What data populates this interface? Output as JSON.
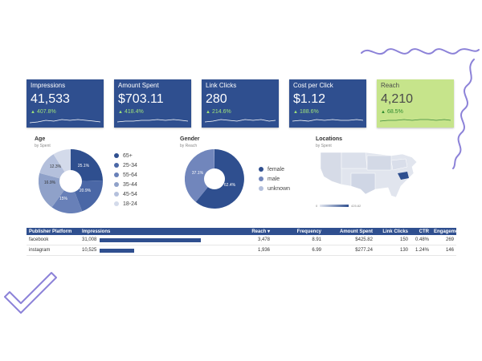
{
  "colors": {
    "kpi_dark": "#2f4f8f",
    "kpi_light": "#c6e48b",
    "delta_positive": "#9fe27a",
    "decoration": "#8c82d8"
  },
  "kpis": [
    {
      "title": "Impressions",
      "value": "41,533",
      "delta": "407.8%"
    },
    {
      "title": "Amount Spent",
      "value": "$703.11",
      "delta": "418.4%"
    },
    {
      "title": "Link Clicks",
      "value": "280",
      "delta": "214.6%"
    },
    {
      "title": "Cost per Click",
      "value": "$1.12",
      "delta": "188.6%"
    },
    {
      "title": "Reach",
      "value": "4,210",
      "delta": "68.5%"
    }
  ],
  "age": {
    "title": "Age",
    "subtitle": "by Spent",
    "legend": [
      "65+",
      "25-34",
      "55-64",
      "35-44",
      "45-54",
      "18-24"
    ],
    "slice_labels": [
      "25.1%",
      "20.9%",
      "15%",
      "16.9%",
      "12.3%"
    ]
  },
  "gender": {
    "title": "Gender",
    "subtitle": "by Reach",
    "legend": [
      "female",
      "male",
      "unknown"
    ],
    "slice_labels": [
      "62.4%",
      "37.1%"
    ]
  },
  "locations": {
    "title": "Locations",
    "subtitle": "by Spent",
    "scale_min": "0",
    "scale_max": "425.82"
  },
  "table": {
    "headers": [
      "Publisher Platform",
      "Impressions",
      "Reach ▾",
      "Frequency",
      "Amount Spent",
      "Link Clicks",
      "CTR",
      "Engagement"
    ],
    "rows": [
      {
        "platform": "facebook",
        "impressions": "31,008",
        "impressions_share": 1.0,
        "reach": "3,478",
        "frequency": "8.91",
        "spent": "$425.82",
        "clicks": "150",
        "ctr": "0.48%",
        "engagement": "269"
      },
      {
        "platform": "instagram",
        "impressions": "10,525",
        "impressions_share": 0.34,
        "reach": "1,936",
        "frequency": "6.99",
        "spent": "$277.24",
        "clicks": "130",
        "ctr": "1.24%",
        "engagement": "146"
      }
    ]
  }
}
